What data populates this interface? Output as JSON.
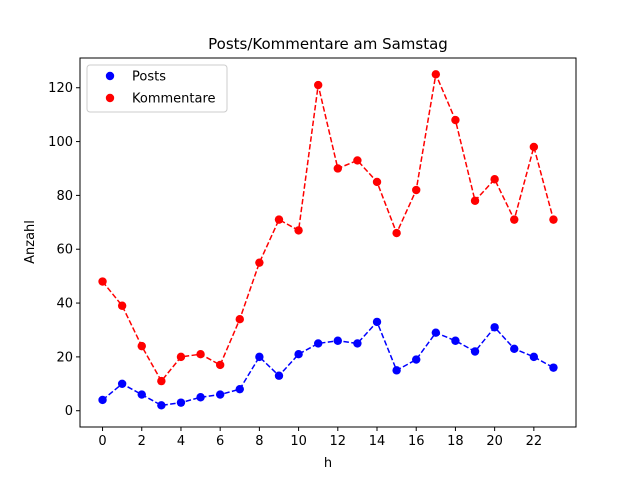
{
  "chart_data": {
    "type": "line",
    "title": "Posts/Kommentare am Samstag",
    "xlabel": "h",
    "ylabel": "Anzahl",
    "x": [
      0,
      1,
      2,
      3,
      4,
      5,
      6,
      7,
      8,
      9,
      10,
      11,
      12,
      13,
      14,
      15,
      16,
      17,
      18,
      19,
      20,
      21,
      22,
      23
    ],
    "xlim": [
      -1.15,
      24.15
    ],
    "ylim": [
      -6.05,
      131.05
    ],
    "xticks": [
      0,
      2,
      4,
      6,
      8,
      10,
      12,
      14,
      16,
      18,
      20,
      22
    ],
    "yticks": [
      0,
      20,
      40,
      60,
      80,
      100,
      120
    ],
    "grid": false,
    "legend_position": "top-left",
    "series": [
      {
        "name": "Posts",
        "color": "#0000ff",
        "line_style": "dashed",
        "marker": "circle",
        "values": [
          4,
          10,
          6,
          2,
          3,
          5,
          6,
          8,
          20,
          13,
          21,
          25,
          26,
          25,
          33,
          15,
          19,
          29,
          26,
          22,
          31,
          23,
          20,
          16
        ]
      },
      {
        "name": "Kommentare",
        "color": "#ff0000",
        "line_style": "dashed",
        "marker": "circle",
        "values": [
          48,
          39,
          24,
          11,
          20,
          21,
          17,
          34,
          55,
          71,
          67,
          121,
          90,
          93,
          85,
          66,
          82,
          125,
          108,
          78,
          86,
          71,
          98,
          71
        ]
      }
    ]
  }
}
